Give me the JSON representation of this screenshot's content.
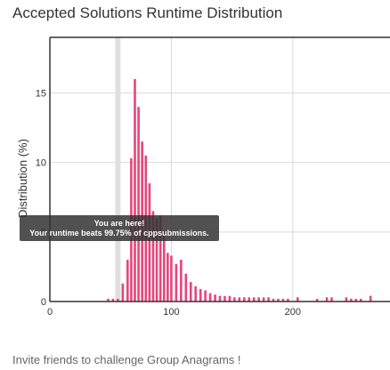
{
  "chart_data": {
    "type": "bar",
    "title": "Accepted Solutions Runtime Distribution",
    "ylabel": "Distribution (%)",
    "xlabel": "",
    "xlim": [
      0,
      280
    ],
    "ylim": [
      0,
      19
    ],
    "x_ticks": [
      0,
      100,
      200
    ],
    "y_ticks": [
      0,
      5,
      10,
      15
    ],
    "grid": true,
    "colors": {
      "bar": "#e6457a",
      "marker": "#e0e0e0",
      "tooltip_bg": "#333333"
    },
    "marker_x": 56,
    "bars": [
      {
        "x": 48,
        "y": 0.2
      },
      {
        "x": 52,
        "y": 0.2
      },
      {
        "x": 56,
        "y": 0.2
      },
      {
        "x": 60,
        "y": 1.3
      },
      {
        "x": 64,
        "y": 3.0
      },
      {
        "x": 67,
        "y": 10.3
      },
      {
        "x": 70,
        "y": 16.0
      },
      {
        "x": 73,
        "y": 14.0
      },
      {
        "x": 76,
        "y": 11.5
      },
      {
        "x": 79,
        "y": 10.5
      },
      {
        "x": 82,
        "y": 8.5
      },
      {
        "x": 85,
        "y": 6.5
      },
      {
        "x": 88,
        "y": 6.0
      },
      {
        "x": 91,
        "y": 6.2
      },
      {
        "x": 94,
        "y": 5.0
      },
      {
        "x": 97,
        "y": 3.5
      },
      {
        "x": 100,
        "y": 3.3
      },
      {
        "x": 104,
        "y": 2.7
      },
      {
        "x": 108,
        "y": 3.0
      },
      {
        "x": 112,
        "y": 2.0
      },
      {
        "x": 116,
        "y": 1.4
      },
      {
        "x": 120,
        "y": 1.1
      },
      {
        "x": 124,
        "y": 0.9
      },
      {
        "x": 128,
        "y": 0.8
      },
      {
        "x": 132,
        "y": 0.6
      },
      {
        "x": 136,
        "y": 0.5
      },
      {
        "x": 140,
        "y": 0.4
      },
      {
        "x": 144,
        "y": 0.4
      },
      {
        "x": 148,
        "y": 0.4
      },
      {
        "x": 152,
        "y": 0.3
      },
      {
        "x": 156,
        "y": 0.3
      },
      {
        "x": 160,
        "y": 0.3
      },
      {
        "x": 164,
        "y": 0.3
      },
      {
        "x": 168,
        "y": 0.3
      },
      {
        "x": 172,
        "y": 0.3
      },
      {
        "x": 176,
        "y": 0.3
      },
      {
        "x": 180,
        "y": 0.3
      },
      {
        "x": 184,
        "y": 0.2
      },
      {
        "x": 188,
        "y": 0.2
      },
      {
        "x": 192,
        "y": 0.2
      },
      {
        "x": 196,
        "y": 0.2
      },
      {
        "x": 204,
        "y": 0.3
      },
      {
        "x": 220,
        "y": 0.2
      },
      {
        "x": 228,
        "y": 0.3
      },
      {
        "x": 232,
        "y": 0.3
      },
      {
        "x": 244,
        "y": 0.3
      },
      {
        "x": 248,
        "y": 0.2
      },
      {
        "x": 252,
        "y": 0.2
      },
      {
        "x": 256,
        "y": 0.2
      },
      {
        "x": 264,
        "y": 0.4
      }
    ],
    "tooltip": {
      "line1": "You are here!",
      "line2": "Your runtime beats 99.75% of cppsubmissions."
    }
  },
  "footer": {
    "invite_text": "Invite friends to challenge Group Anagrams !"
  }
}
